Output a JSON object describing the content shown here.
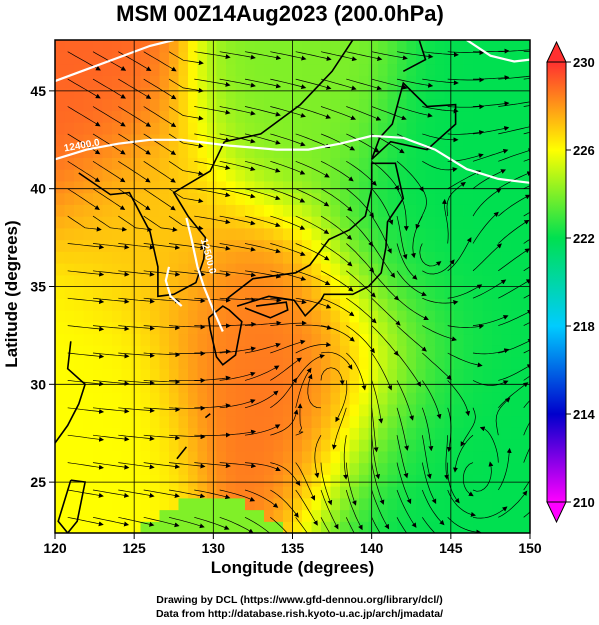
{
  "title": "MSM 00Z14Aug2023 (200.0hPa)",
  "credits": [
    "Drawing by DCL (https://www.gfd-dennou.org/library/dcl/)",
    "Data from http://database.rish.kyoto-u.ac.jp/arch/jmadata/"
  ],
  "chart_data": {
    "type": "heatmap",
    "title": "MSM 00Z14Aug2023 (200.0hPa)",
    "xlabel": "Longitude (degrees)",
    "ylabel": "Latitude  (degrees)",
    "xlim": [
      120,
      150
    ],
    "ylim": [
      22.4,
      47.6
    ],
    "x_ticks": [
      120,
      125,
      130,
      135,
      140,
      145,
      150
    ],
    "x_tick_labels": [
      "120",
      "125",
      "130",
      "135",
      "140",
      "145",
      "150"
    ],
    "y_ticks": [
      25,
      30,
      35,
      40,
      45
    ],
    "y_tick_labels": [
      "25",
      "30",
      "35",
      "40",
      "45"
    ],
    "grid": true,
    "colorbar": {
      "min": 210,
      "max": 230,
      "ticks": [
        210,
        214,
        218,
        222,
        226,
        230
      ],
      "tick_labels": [
        "210",
        "214",
        "218",
        "222",
        "226",
        "230"
      ],
      "colors": [
        "#ff00ff",
        "#0000cc",
        "#00ccff",
        "#00e050",
        "#ffff00",
        "#ff3030"
      ]
    },
    "field_features": [
      {
        "lon": 121.5,
        "lat": 45.0,
        "value": 229
      },
      {
        "lon": 137.5,
        "lat": 31.0,
        "value": 229
      },
      {
        "lon": 132.5,
        "lat": 33.0,
        "value": 228.5
      },
      {
        "lon": 126.0,
        "lat": 38.0,
        "value": 227
      },
      {
        "lon": 122.0,
        "lat": 30.0,
        "value": 226
      },
      {
        "lon": 142.0,
        "lat": 36.0,
        "value": 222
      },
      {
        "lon": 143.0,
        "lat": 28.0,
        "value": 222
      },
      {
        "lon": 147.0,
        "lat": 42.0,
        "value": 222
      },
      {
        "lon": 146.0,
        "lat": 24.0,
        "value": 222
      },
      {
        "lon": 135.0,
        "lat": 44.0,
        "value": 224
      }
    ],
    "contours": [
      {
        "label": "12400.0",
        "color": "#ffffff"
      },
      {
        "label": "12500.0",
        "color": "#ffffff"
      }
    ],
    "streamline_type": "wind",
    "vortices": [
      {
        "lon": 137.5,
        "lat": 30.5,
        "sense": "anticyclonic"
      },
      {
        "lon": 143.5,
        "lat": 36.5,
        "sense": "cyclonic"
      },
      {
        "lon": 146.5,
        "lat": 25.0,
        "sense": "cyclonic"
      }
    ]
  }
}
